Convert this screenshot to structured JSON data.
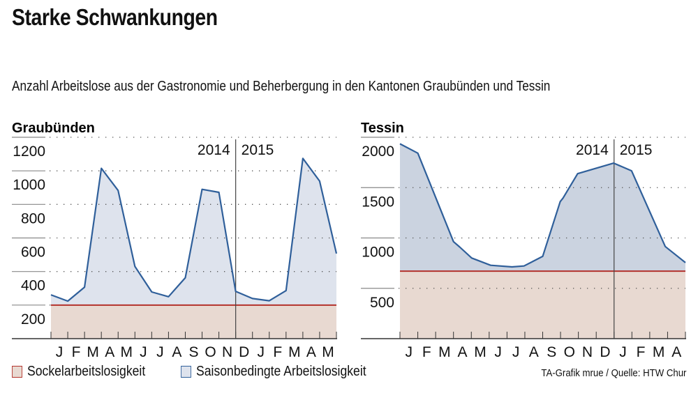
{
  "title": "Starke Schwankungen",
  "subtitle": "Anzahl Arbeitslose aus der Gastronomie und Beherbergung in den Kantonen Graubünden und Tessin",
  "legend": {
    "sockel": "Sockelarbeitslosigkeit",
    "saison": "Saisonbedingte Arbeitslosigkeit"
  },
  "credit": "TA-Grafik mrue / Quelle: HTW Chur",
  "colors": {
    "line": "#2f5f9a",
    "sockel_line": "#b3322b",
    "sockel_fill": "#e8d9d1",
    "fill_left": "#dee3ed",
    "fill_right": "#cbd3e0"
  },
  "chart_data": [
    {
      "type": "area",
      "title": "Graubünden",
      "ylim": [
        0,
        1200
      ],
      "yticks": [
        "1200",
        "1000",
        "800",
        "600",
        "400",
        "200"
      ],
      "ytick_values": [
        1200,
        1000,
        800,
        600,
        400,
        200
      ],
      "categories": [
        "J",
        "F",
        "M",
        "A",
        "M",
        "J",
        "J",
        "A",
        "S",
        "O",
        "N",
        "D",
        "J",
        "F",
        "M",
        "A",
        "M"
      ],
      "year_labels": [
        "2014",
        "2015"
      ],
      "year_divider_index": 11,
      "sockel": 200,
      "series": [
        {
          "name": "Saisonbedingte Arbeitslosigkeit",
          "x": [
            0,
            1,
            2,
            3,
            4,
            5,
            6,
            7,
            8,
            9,
            10,
            11,
            12,
            13,
            14,
            15,
            16,
            17
          ],
          "values": [
            261,
            224,
            307,
            1015,
            883,
            430,
            278,
            250,
            363,
            890,
            872,
            282,
            239,
            226,
            286,
            1074,
            939,
            507
          ]
        }
      ]
    },
    {
      "type": "area",
      "title": "Tessin",
      "ylim": [
        0,
        2000
      ],
      "yticks": [
        "2000",
        "1500",
        "1000",
        "500"
      ],
      "ytick_values": [
        2000,
        1500,
        1000,
        500
      ],
      "categories": [
        "J",
        "F",
        "M",
        "A",
        "M",
        "J",
        "J",
        "A",
        "S",
        "O",
        "N",
        "D",
        "J",
        "F",
        "M",
        "A"
      ],
      "year_labels": [
        "2014",
        "2015"
      ],
      "year_divider_index": 12,
      "sockel": 670,
      "series": [
        {
          "name": "Saisonbedingte Arbeitslosigkeit",
          "x": [
            0,
            1,
            3,
            3.35,
            4.02,
            5.08,
            6.28,
            6.95,
            8,
            8.98,
            9.14,
            9.96,
            11.98,
            12.98,
            14.87,
            16
          ],
          "values": [
            1935,
            1842,
            963,
            910,
            801,
            729,
            713,
            722,
            817,
            1361,
            1396,
            1639,
            1743,
            1667,
            915,
            755
          ]
        }
      ]
    }
  ]
}
